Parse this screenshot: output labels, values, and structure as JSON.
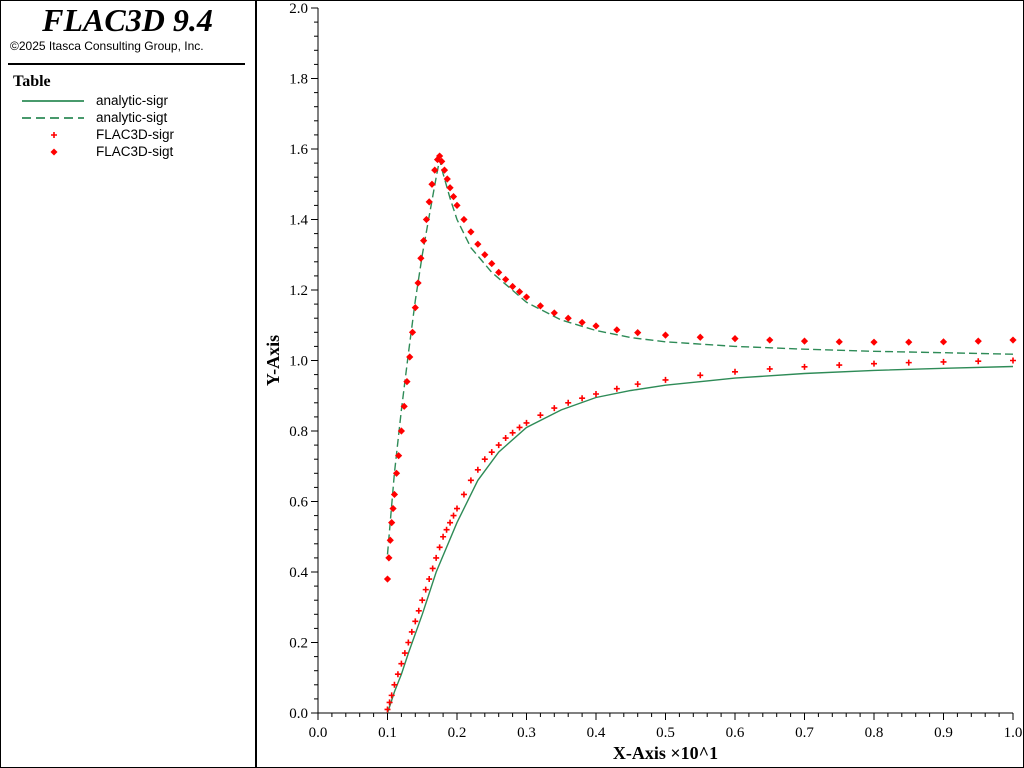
{
  "app": {
    "title": "FLAC3D 9.4",
    "copyright": "©2025 Itasca Consulting Group, Inc."
  },
  "legend": {
    "title": "Table",
    "items": [
      {
        "label": "analytic-sigr",
        "symbol": "solid-line",
        "color": "#2e8b57"
      },
      {
        "label": "analytic-sigt",
        "symbol": "dashed-line",
        "color": "#2e8b57"
      },
      {
        "label": "FLAC3D-sigr",
        "symbol": "plus-marker",
        "color": "#ff0000"
      },
      {
        "label": "FLAC3D-sigt",
        "symbol": "diamond-marker",
        "color": "#ff0000"
      }
    ]
  },
  "chart_data": {
    "type": "line",
    "xlabel": "X-Axis ×10^1",
    "ylabel": "Y-Axis",
    "xlim": [
      0.0,
      1.0
    ],
    "ylim": [
      0.0,
      2.0
    ],
    "xticks": [
      "0.0",
      "0.1",
      "0.2",
      "0.3",
      "0.4",
      "0.5",
      "0.6",
      "0.7",
      "0.8",
      "0.9",
      "1.0"
    ],
    "yticks": [
      "0.0",
      "0.2",
      "0.4",
      "0.6",
      "0.8",
      "1.0",
      "1.2",
      "1.4",
      "1.6",
      "1.8",
      "2.0"
    ],
    "grid": false,
    "series": [
      {
        "name": "analytic-sigr",
        "style": "solid",
        "color": "#2e8b57",
        "x": [
          0.1,
          0.105,
          0.11,
          0.12,
          0.13,
          0.15,
          0.17,
          0.2,
          0.23,
          0.26,
          0.3,
          0.35,
          0.4,
          0.45,
          0.5,
          0.6,
          0.7,
          0.8,
          0.9,
          1.0
        ],
        "y": [
          0.0,
          0.03,
          0.06,
          0.11,
          0.17,
          0.28,
          0.4,
          0.54,
          0.66,
          0.74,
          0.81,
          0.86,
          0.895,
          0.915,
          0.93,
          0.95,
          0.963,
          0.972,
          0.978,
          0.983
        ]
      },
      {
        "name": "analytic-sigt",
        "style": "dashed",
        "color": "#2e8b57",
        "x": [
          0.1,
          0.11,
          0.12,
          0.13,
          0.14,
          0.15,
          0.16,
          0.17,
          0.175,
          0.18,
          0.19,
          0.2,
          0.22,
          0.25,
          0.3,
          0.35,
          0.4,
          0.45,
          0.5,
          0.6,
          0.7,
          0.8,
          0.9,
          1.0
        ],
        "y": [
          0.45,
          0.68,
          0.86,
          1.02,
          1.17,
          1.3,
          1.41,
          1.52,
          1.57,
          1.53,
          1.46,
          1.4,
          1.32,
          1.25,
          1.165,
          1.115,
          1.085,
          1.065,
          1.053,
          1.04,
          1.032,
          1.026,
          1.022,
          1.018
        ]
      },
      {
        "name": "FLAC3D-sigr",
        "style": "plus",
        "color": "#ff0000",
        "x": [
          0.1,
          0.103,
          0.106,
          0.11,
          0.115,
          0.12,
          0.125,
          0.13,
          0.135,
          0.14,
          0.145,
          0.15,
          0.155,
          0.16,
          0.165,
          0.17,
          0.175,
          0.18,
          0.185,
          0.19,
          0.195,
          0.2,
          0.21,
          0.22,
          0.23,
          0.24,
          0.25,
          0.26,
          0.27,
          0.28,
          0.29,
          0.3,
          0.32,
          0.34,
          0.36,
          0.38,
          0.4,
          0.43,
          0.46,
          0.5,
          0.55,
          0.6,
          0.65,
          0.7,
          0.75,
          0.8,
          0.85,
          0.9,
          0.95,
          1.0
        ],
        "y": [
          0.01,
          0.03,
          0.05,
          0.08,
          0.11,
          0.14,
          0.17,
          0.2,
          0.23,
          0.26,
          0.29,
          0.32,
          0.35,
          0.38,
          0.41,
          0.44,
          0.47,
          0.5,
          0.52,
          0.54,
          0.56,
          0.58,
          0.62,
          0.66,
          0.69,
          0.72,
          0.74,
          0.76,
          0.78,
          0.795,
          0.81,
          0.823,
          0.845,
          0.865,
          0.88,
          0.893,
          0.905,
          0.92,
          0.933,
          0.945,
          0.958,
          0.968,
          0.976,
          0.982,
          0.987,
          0.991,
          0.994,
          0.996,
          0.998,
          1.0
        ]
      },
      {
        "name": "FLAC3D-sigt",
        "style": "diamond",
        "color": "#ff0000",
        "x": [
          0.1,
          0.102,
          0.104,
          0.106,
          0.108,
          0.11,
          0.113,
          0.116,
          0.12,
          0.124,
          0.128,
          0.132,
          0.136,
          0.14,
          0.144,
          0.148,
          0.152,
          0.156,
          0.16,
          0.164,
          0.168,
          0.172,
          0.175,
          0.178,
          0.182,
          0.186,
          0.19,
          0.195,
          0.2,
          0.21,
          0.22,
          0.23,
          0.24,
          0.25,
          0.26,
          0.27,
          0.28,
          0.29,
          0.3,
          0.32,
          0.34,
          0.36,
          0.38,
          0.4,
          0.43,
          0.46,
          0.5,
          0.55,
          0.6,
          0.65,
          0.7,
          0.75,
          0.8,
          0.85,
          0.9,
          0.95,
          1.0
        ],
        "y": [
          0.38,
          0.44,
          0.49,
          0.54,
          0.58,
          0.62,
          0.68,
          0.73,
          0.8,
          0.87,
          0.94,
          1.01,
          1.08,
          1.15,
          1.22,
          1.29,
          1.34,
          1.4,
          1.45,
          1.5,
          1.54,
          1.57,
          1.58,
          1.565,
          1.54,
          1.515,
          1.49,
          1.465,
          1.44,
          1.4,
          1.365,
          1.33,
          1.3,
          1.275,
          1.25,
          1.23,
          1.21,
          1.195,
          1.18,
          1.155,
          1.135,
          1.12,
          1.108,
          1.098,
          1.087,
          1.079,
          1.072,
          1.066,
          1.062,
          1.058,
          1.055,
          1.053,
          1.052,
          1.052,
          1.053,
          1.055,
          1.058
        ]
      }
    ]
  }
}
